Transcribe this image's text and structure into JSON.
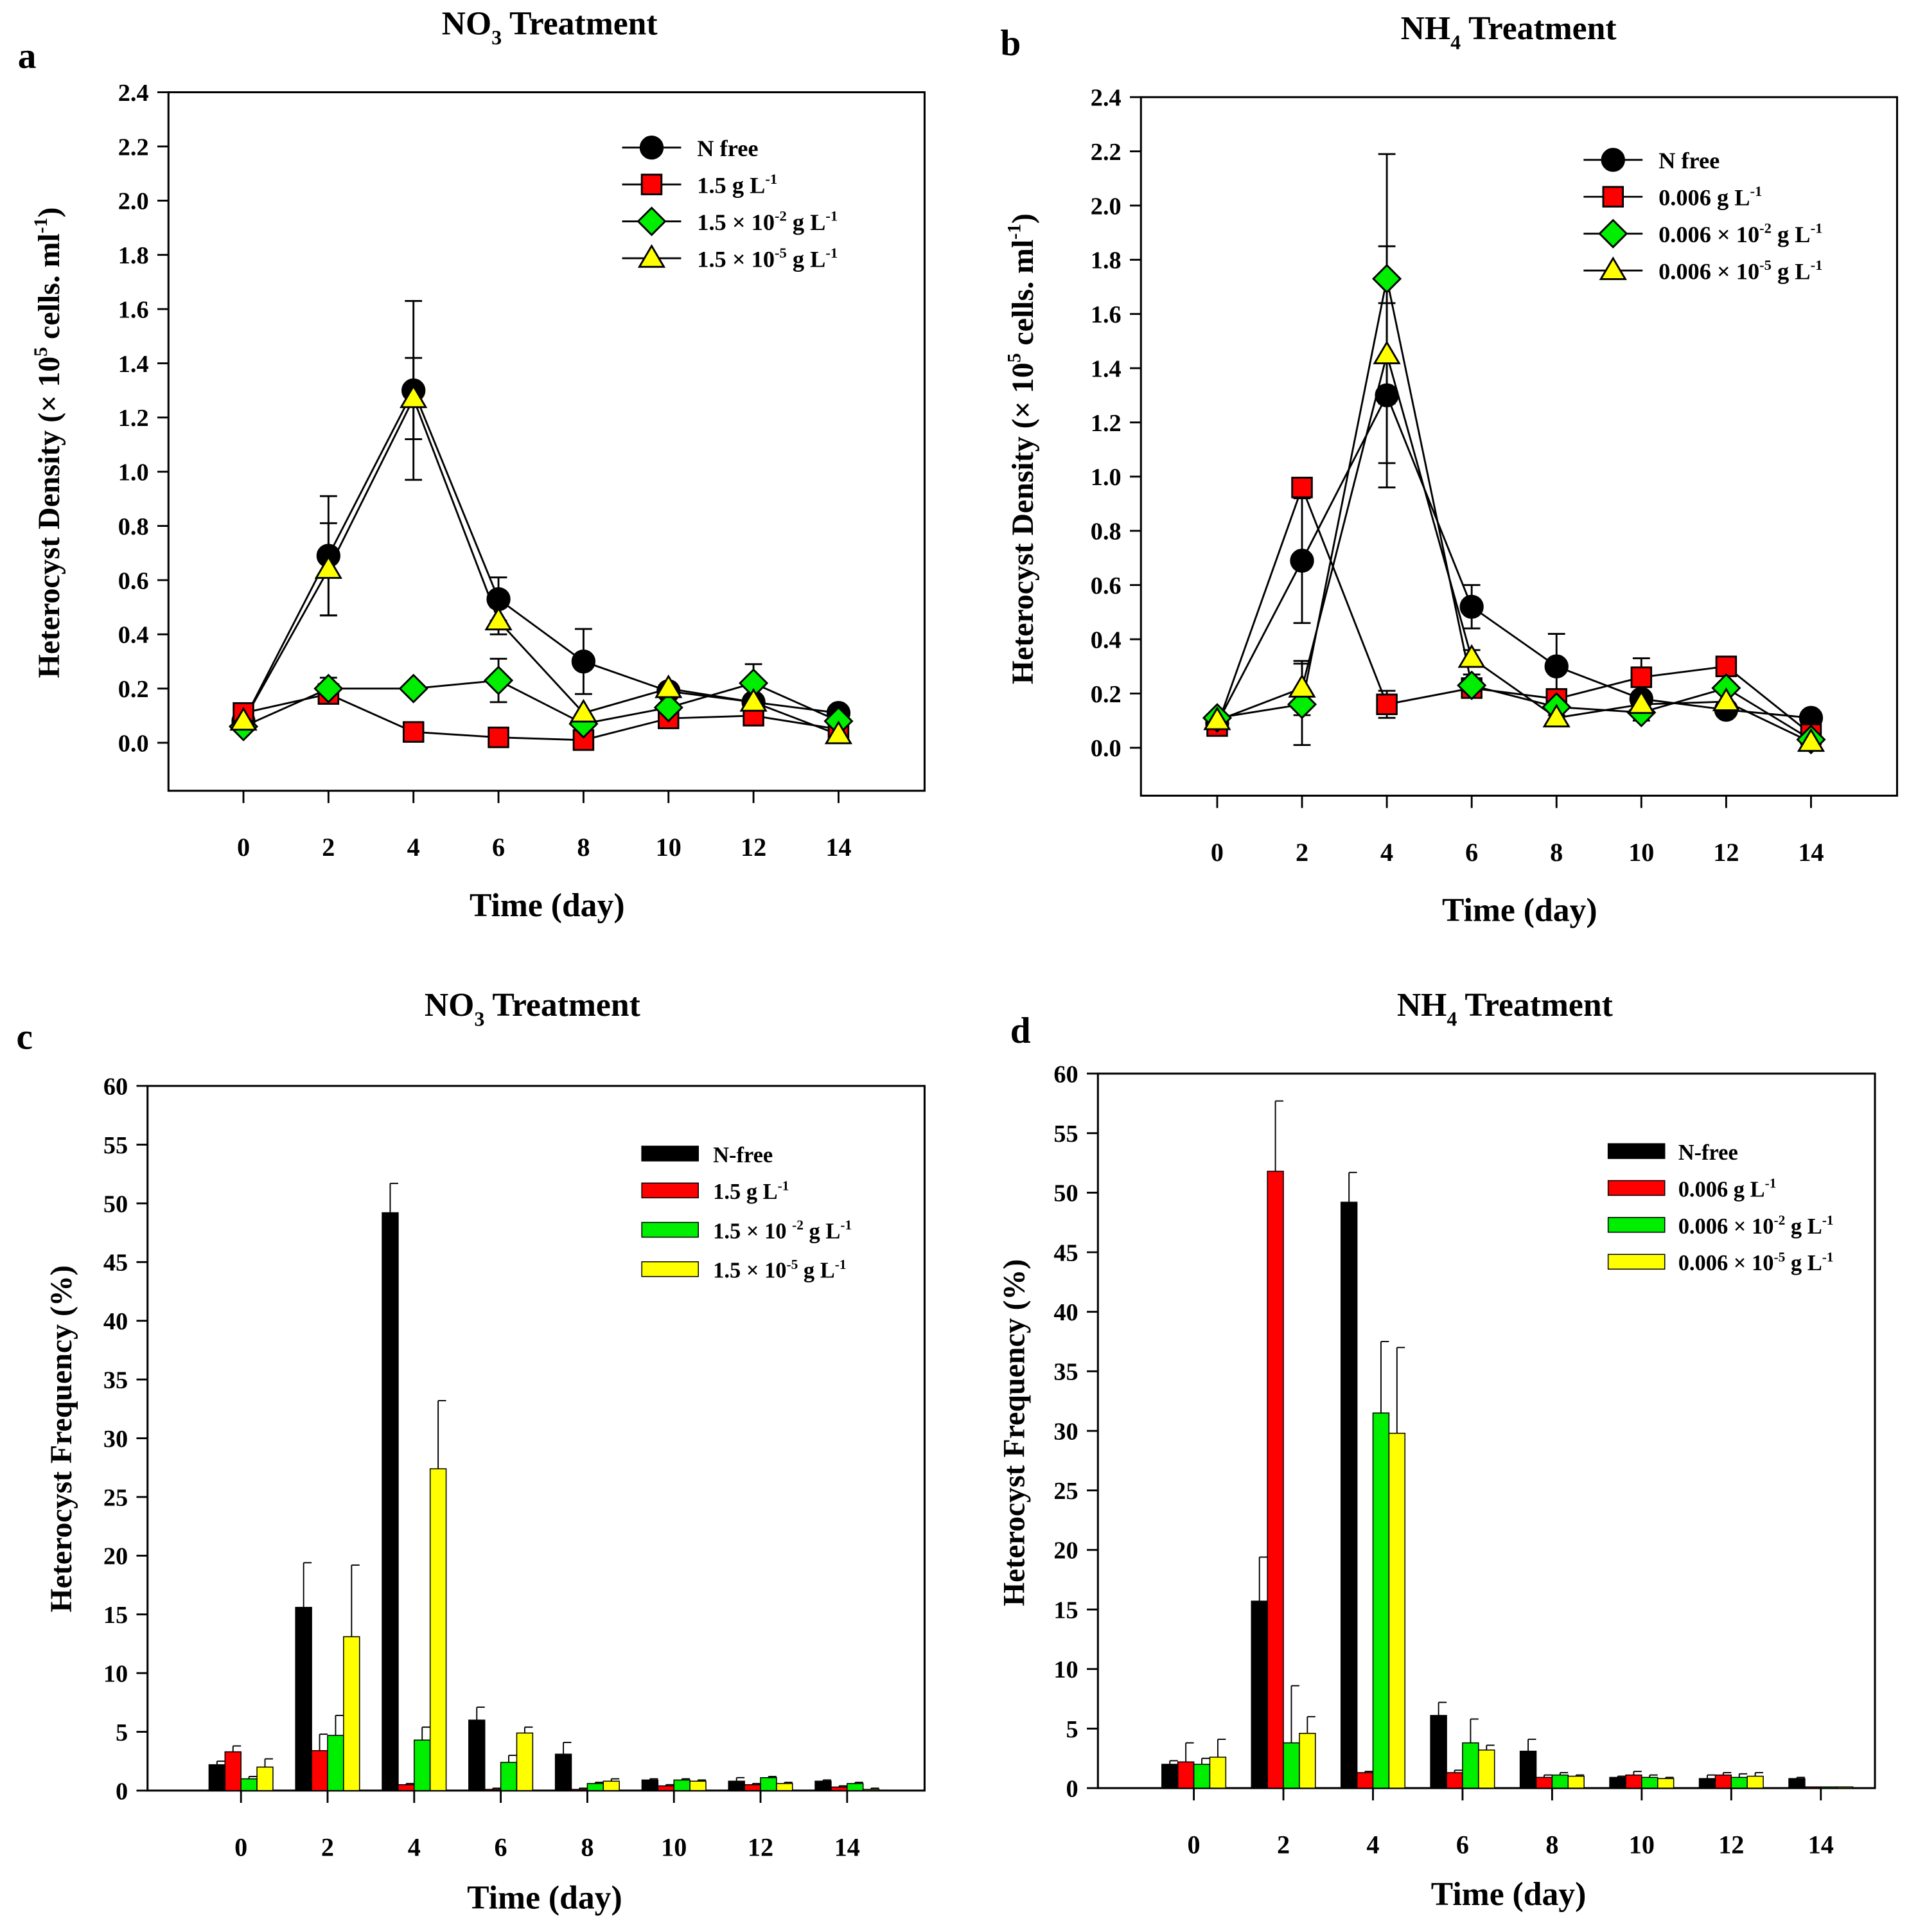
{
  "chart_data": [
    {
      "panel": "a",
      "type": "line",
      "title": [
        {
          "t": "NO"
        },
        {
          "sub": "3"
        },
        {
          "t": " Treatment"
        }
      ],
      "xlabel": "Time (day)",
      "ylabel": [
        {
          "t": "Heterocyst Density (× 10"
        },
        {
          "sup": "5"
        },
        {
          "t": " cells. ml"
        },
        {
          "sup": "-1"
        },
        {
          "t": ")"
        }
      ],
      "x": [
        0,
        2,
        4,
        6,
        8,
        10,
        12,
        14
      ],
      "xticks": [
        "0",
        "2",
        "4",
        "6",
        "8",
        "10",
        "12",
        "14"
      ],
      "ylim": [
        0,
        2.4
      ],
      "yticks": [
        "0.0",
        "0.2",
        "0.4",
        "0.6",
        "0.8",
        "1.0",
        "1.2",
        "1.4",
        "1.6",
        "1.8",
        "2.0",
        "2.2",
        "2.4"
      ],
      "legend_position": "top-right",
      "series": [
        {
          "name": [
            {
              "t": "N free"
            }
          ],
          "marker": "circle",
          "color": "#000000",
          "values": [
            0.08,
            0.69,
            1.3,
            0.53,
            0.3,
            0.19,
            0.15,
            0.11
          ],
          "errors": [
            0.02,
            0.22,
            0.33,
            0.08,
            0.12,
            0.02,
            0.02,
            0.01
          ]
        },
        {
          "name": [
            {
              "t": "1.5 g L"
            },
            {
              "sup": "-1"
            }
          ],
          "marker": "square",
          "color": "#ff0000",
          "values": [
            0.11,
            0.18,
            0.04,
            0.02,
            0.01,
            0.09,
            0.1,
            0.05
          ],
          "errors": [
            0.01,
            0.02,
            0.01,
            0.01,
            0.01,
            0.01,
            0.01,
            0.01
          ]
        },
        {
          "name": [
            {
              "t": "1.5 × 10"
            },
            {
              "sup": "-2"
            },
            {
              "t": " g L"
            },
            {
              "sup": "-1"
            }
          ],
          "marker": "diamond",
          "color": "#00ee00",
          "values": [
            0.06,
            0.2,
            0.2,
            0.23,
            0.07,
            0.13,
            0.22,
            0.08
          ],
          "errors": [
            0.01,
            0.04,
            0.01,
            0.08,
            0.01,
            0.02,
            0.07,
            0.01
          ]
        },
        {
          "name": [
            {
              "t": "1.5 × 10"
            },
            {
              "sup": "-5"
            },
            {
              "t": " g L"
            },
            {
              "sup": "-1"
            }
          ],
          "marker": "triangle",
          "color": "#ffff00",
          "values": [
            0.08,
            0.64,
            1.27,
            0.45,
            0.11,
            0.2,
            0.15,
            0.03
          ],
          "errors": [
            0.01,
            0.17,
            0.15,
            0.05,
            0.01,
            0.01,
            0.01,
            0.01
          ]
        }
      ]
    },
    {
      "panel": "b",
      "type": "line",
      "title": [
        {
          "t": "NH"
        },
        {
          "sub": "4"
        },
        {
          "t": " Treatment"
        }
      ],
      "xlabel": "Time (day)",
      "ylabel": [
        {
          "t": "Heterocyst Density (× 10"
        },
        {
          "sup": "5"
        },
        {
          "t": " cells. ml"
        },
        {
          "sup": "-1"
        },
        {
          "t": ")"
        }
      ],
      "x": [
        0,
        2,
        4,
        6,
        8,
        10,
        12,
        14
      ],
      "xticks": [
        "0",
        "2",
        "4",
        "6",
        "8",
        "10",
        "12",
        "14"
      ],
      "ylim": [
        0,
        2.4
      ],
      "yticks": [
        "0.0",
        "0.2",
        "0.4",
        "0.6",
        "0.8",
        "1.0",
        "1.2",
        "1.4",
        "1.6",
        "1.8",
        "2.0",
        "2.2",
        "2.4"
      ],
      "legend_position": "top-right",
      "series": [
        {
          "name": [
            {
              "t": "N free"
            }
          ],
          "marker": "circle",
          "color": "#000000",
          "values": [
            0.09,
            0.69,
            1.3,
            0.52,
            0.3,
            0.18,
            0.14,
            0.11
          ],
          "errors": [
            0.01,
            0.23,
            0.34,
            0.08,
            0.12,
            0.02,
            0.02,
            0.01
          ]
        },
        {
          "name": [
            {
              "t": "0.006 g L"
            },
            {
              "sup": "-1"
            }
          ],
          "marker": "square",
          "color": "#ff0000",
          "values": [
            0.08,
            0.96,
            0.16,
            0.22,
            0.18,
            0.26,
            0.3,
            0.05
          ],
          "errors": [
            0.01,
            0.02,
            0.05,
            0.02,
            0.02,
            0.07,
            0.02,
            0.01
          ]
        },
        {
          "name": [
            {
              "t": "0.006 × 10"
            },
            {
              "sup": "-2"
            },
            {
              "t": " g L"
            },
            {
              "sup": "-1"
            }
          ],
          "marker": "diamond",
          "color": "#00ee00",
          "values": [
            0.11,
            0.16,
            1.73,
            0.23,
            0.15,
            0.13,
            0.22,
            0.03
          ],
          "errors": [
            0.01,
            0.15,
            0.46,
            0.04,
            0.03,
            0.03,
            0.02,
            0.01
          ]
        },
        {
          "name": [
            {
              "t": "0.006 × 10"
            },
            {
              "sup": "-5"
            },
            {
              "t": " g L"
            },
            {
              "sup": "-1"
            }
          ],
          "marker": "triangle",
          "color": "#ffff00",
          "values": [
            0.1,
            0.22,
            1.45,
            0.33,
            0.11,
            0.16,
            0.17,
            0.02
          ],
          "errors": [
            0.01,
            0.1,
            0.4,
            0.03,
            0.01,
            0.01,
            0.01,
            0.01
          ]
        }
      ]
    },
    {
      "panel": "c",
      "type": "bar",
      "title": [
        {
          "t": "NO"
        },
        {
          "sub": "3"
        },
        {
          "t": " Treatment"
        }
      ],
      "xlabel": "Time (day)",
      "ylabel": [
        {
          "t": "Heterocyst Frequency (%)"
        }
      ],
      "x": [
        0,
        2,
        4,
        6,
        8,
        10,
        12,
        14
      ],
      "xticks": [
        "0",
        "2",
        "4",
        "6",
        "8",
        "10",
        "12",
        "14"
      ],
      "ylim": [
        0,
        60
      ],
      "yticks": [
        "0",
        "5",
        "10",
        "15",
        "20",
        "25",
        "30",
        "35",
        "40",
        "45",
        "50",
        "55",
        "60"
      ],
      "legend_position": "top-right",
      "series": [
        {
          "name": [
            {
              "t": "N-free"
            }
          ],
          "color": "#000000",
          "values": [
            2.2,
            15.6,
            49.2,
            6.0,
            3.1,
            0.9,
            0.8,
            0.8
          ],
          "errors": [
            0.3,
            3.8,
            2.5,
            1.1,
            1.0,
            0.1,
            0.3,
            0.1
          ]
        },
        {
          "name": [
            {
              "t": "1.5 g L"
            },
            {
              "sup": "-1"
            }
          ],
          "color": "#ff0000",
          "values": [
            3.3,
            3.4,
            0.5,
            0.1,
            0.1,
            0.4,
            0.5,
            0.3
          ],
          "errors": [
            0.5,
            1.4,
            0.1,
            0.1,
            0.1,
            0.1,
            0.1,
            0.1
          ]
        },
        {
          "name": [
            {
              "t": "1.5 × 10 "
            },
            {
              "sup": "-2"
            },
            {
              "t": " g L"
            },
            {
              "sup": "-1"
            }
          ],
          "color": "#00ee00",
          "values": [
            1.0,
            4.7,
            4.3,
            2.4,
            0.6,
            0.9,
            1.1,
            0.6
          ],
          "errors": [
            0.2,
            1.7,
            1.1,
            0.6,
            0.1,
            0.1,
            0.1,
            0.1
          ]
        },
        {
          "name": [
            {
              "t": "1.5 ×  10"
            },
            {
              "sup": "-5"
            },
            {
              "t": " g L"
            },
            {
              "sup": "-1"
            }
          ],
          "color": "#ffff00",
          "values": [
            2.0,
            13.1,
            27.4,
            4.9,
            0.8,
            0.8,
            0.6,
            0.1
          ],
          "errors": [
            0.7,
            6.1,
            5.8,
            0.5,
            0.2,
            0.1,
            0.1,
            0.1
          ]
        }
      ]
    },
    {
      "panel": "d",
      "type": "bar",
      "title": [
        {
          "t": "NH"
        },
        {
          "sub": "4"
        },
        {
          "t": " Treatment"
        }
      ],
      "xlabel": "Time (day)",
      "ylabel": [
        {
          "t": "Heterocyst Frequency (%)"
        }
      ],
      "x": [
        0,
        2,
        4,
        6,
        8,
        10,
        12,
        14
      ],
      "xticks": [
        "0",
        "2",
        "4",
        "6",
        "8",
        "10",
        "12",
        "14"
      ],
      "ylim": [
        0,
        60
      ],
      "yticks": [
        "0",
        "5",
        "10",
        "15",
        "20",
        "25",
        "30",
        "35",
        "40",
        "45",
        "50",
        "55",
        "60"
      ],
      "legend_position": "top-right",
      "series": [
        {
          "name": [
            {
              "t": "N-free"
            }
          ],
          "color": "#000000",
          "values": [
            2.0,
            15.7,
            49.2,
            6.1,
            3.1,
            0.9,
            0.8,
            0.8
          ],
          "errors": [
            0.3,
            3.7,
            2.5,
            1.1,
            1.0,
            0.1,
            0.3,
            0.1
          ]
        },
        {
          "name": [
            {
              "t": "0.006 g L"
            },
            {
              "sup": "-1"
            }
          ],
          "color": "#ff0000",
          "values": [
            2.2,
            51.8,
            1.3,
            1.3,
            0.9,
            1.1,
            1.1,
            0.1
          ],
          "errors": [
            1.6,
            5.9,
            0.1,
            0.2,
            0.2,
            0.3,
            0.2,
            0.0
          ]
        },
        {
          "name": [
            {
              "t": "0.006 × 10"
            },
            {
              "sup": "-2"
            },
            {
              "t": " g L"
            },
            {
              "sup": "-1"
            }
          ],
          "color": "#00ee00",
          "values": [
            2.0,
            3.8,
            31.5,
            3.8,
            1.1,
            0.9,
            0.9,
            0.1
          ],
          "errors": [
            0.5,
            4.8,
            6.0,
            2.0,
            0.2,
            0.2,
            0.3,
            0.0
          ]
        },
        {
          "name": [
            {
              "t": "0.006 × 10"
            },
            {
              "sup": "-5"
            },
            {
              "t": " g L"
            },
            {
              "sup": "-1"
            }
          ],
          "color": "#ffff00",
          "values": [
            2.6,
            4.6,
            29.8,
            3.2,
            1.0,
            0.8,
            1.0,
            0.1
          ],
          "errors": [
            1.5,
            1.4,
            7.2,
            0.4,
            0.1,
            0.1,
            0.3,
            0.0
          ]
        }
      ]
    }
  ]
}
